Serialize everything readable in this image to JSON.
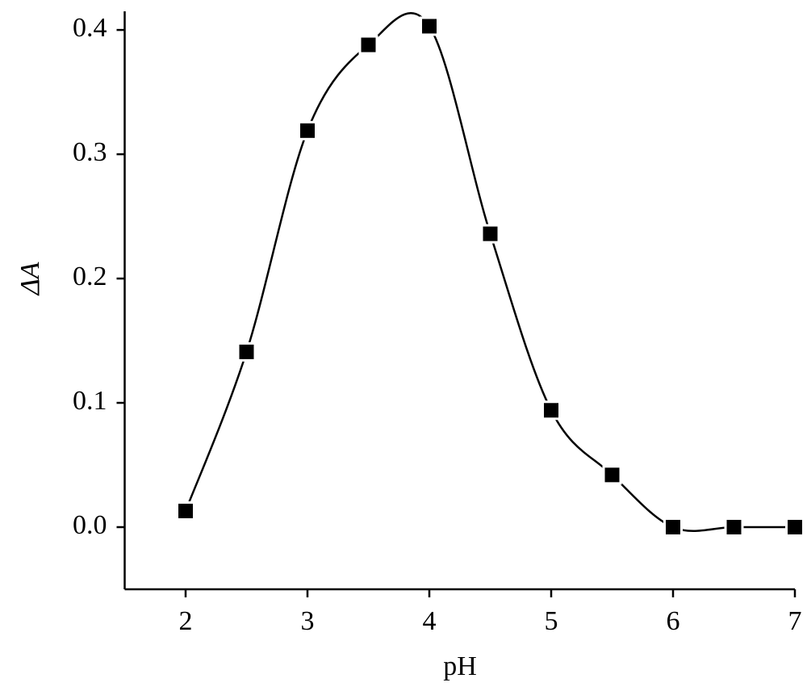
{
  "chart_data": {
    "type": "line",
    "x_label": "pH",
    "y_label": "ΔA",
    "x": [
      2,
      2.5,
      3,
      3.5,
      4,
      4.5,
      5,
      5.5,
      6,
      6.5,
      7
    ],
    "series": [
      {
        "color": "#000000",
        "values": [
          0.013,
          0.141,
          0.319,
          0.388,
          0.403,
          0.236,
          0.094,
          0.042,
          0,
          0,
          0
        ]
      }
    ],
    "xlim": [
      1.5,
      7
    ],
    "ylim": [
      -0.05,
      0.415
    ],
    "xticks": [
      2,
      3,
      4,
      5,
      6,
      7
    ],
    "yticks": [
      {
        "value": 0,
        "label": "0.0"
      },
      0.1,
      0.2,
      0.3,
      0.4
    ],
    "smooth": true,
    "marker": "square"
  }
}
